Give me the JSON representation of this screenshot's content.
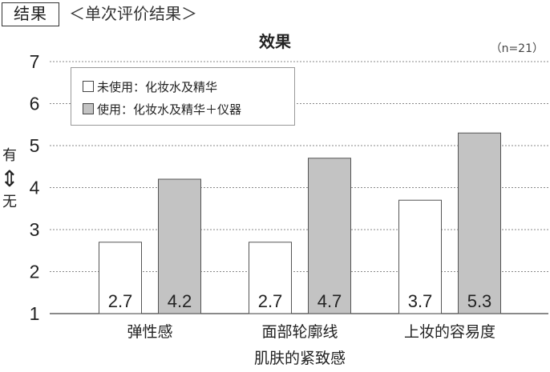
{
  "header": {
    "badge": "结果",
    "subtitle": "＜单次评价结果＞"
  },
  "sample_note": "（n=21）",
  "y_axis_label": {
    "high": "有",
    "arrow": "⇕",
    "low": "无"
  },
  "colors": {
    "series_1_fill": "#ffffff",
    "series_2_fill": "#c3c3c3",
    "bar_stroke": "#555555",
    "grid": "#888888"
  },
  "chart_data": {
    "type": "bar",
    "title": "效果",
    "categories": [
      "弹性感",
      "面部轮廓线",
      "上妆的容易度"
    ],
    "xlabel": "肌肤的紧致感",
    "ylabel": "",
    "ylim": [
      1,
      7
    ],
    "yticks": [
      1,
      2,
      3,
      4,
      5,
      6,
      7
    ],
    "grid": true,
    "legend_position": "top-left",
    "series": [
      {
        "name": "未使用：化妆水及精华",
        "values": [
          2.7,
          2.7,
          3.7
        ],
        "labels": [
          "2.7",
          "2.7",
          "3.7"
        ]
      },
      {
        "name": "使用：化妆水及精华＋仪器",
        "values": [
          4.2,
          4.7,
          5.3
        ],
        "labels": [
          "4.2",
          "4.7",
          "5.3"
        ]
      }
    ]
  }
}
